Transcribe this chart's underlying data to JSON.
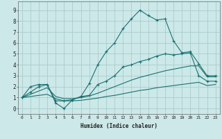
{
  "xlabel": "Humidex (Indice chaleur)",
  "bg_color": "#cce8e8",
  "grid_color": "#aacccc",
  "line_color": "#1a7070",
  "x_ticks": [
    0,
    1,
    2,
    3,
    4,
    5,
    6,
    7,
    8,
    9,
    10,
    11,
    12,
    13,
    14,
    15,
    16,
    17,
    18,
    19,
    20,
    21,
    22,
    23
  ],
  "y_ticks": [
    0,
    1,
    2,
    3,
    4,
    5,
    6,
    7,
    8,
    9
  ],
  "xlim": [
    -0.5,
    23.5
  ],
  "ylim": [
    -0.5,
    9.8
  ],
  "s1": [
    1.0,
    2.0,
    2.2,
    2.2,
    0.7,
    0.7,
    0.8,
    1.1,
    2.3,
    4.0,
    5.2,
    6.0,
    7.3,
    8.2,
    9.0,
    8.5,
    8.1,
    8.2,
    6.2,
    5.1,
    5.2,
    4.1,
    3.0,
    3.0
  ],
  "s2": [
    1.0,
    1.5,
    2.0,
    2.2,
    0.5,
    0.0,
    0.8,
    1.1,
    1.2,
    2.2,
    2.5,
    3.0,
    3.8,
    4.0,
    4.3,
    4.5,
    4.8,
    5.0,
    4.9,
    5.0,
    5.1,
    3.0,
    2.5,
    2.5
  ],
  "s3": [
    1.0,
    1.1,
    1.2,
    1.3,
    0.9,
    0.7,
    0.7,
    0.75,
    0.85,
    0.95,
    1.1,
    1.2,
    1.35,
    1.5,
    1.65,
    1.75,
    1.9,
    2.0,
    2.1,
    2.2,
    2.3,
    2.4,
    2.1,
    2.2
  ],
  "s4": [
    1.0,
    1.3,
    1.6,
    1.9,
    1.1,
    0.9,
    0.9,
    1.0,
    1.15,
    1.4,
    1.7,
    2.0,
    2.3,
    2.6,
    2.85,
    3.05,
    3.25,
    3.45,
    3.6,
    3.75,
    3.9,
    3.9,
    2.9,
    2.9
  ]
}
